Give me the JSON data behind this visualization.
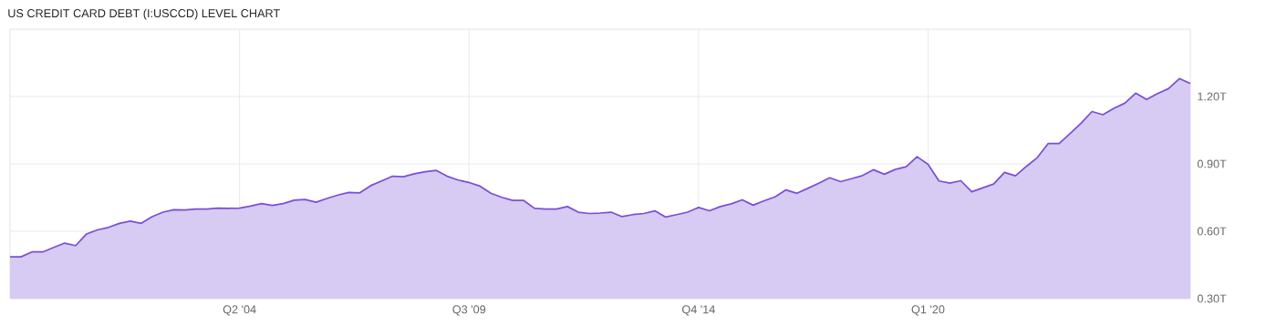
{
  "chart_data": {
    "type": "area",
    "title": "US CREDIT CARD DEBT (I:USCCD) LEVEL CHART",
    "x": [
      "1999-01",
      "1999-04",
      "1999-07",
      "1999-10",
      "2000-01",
      "2000-04",
      "2000-07",
      "2000-10",
      "2001-01",
      "2001-04",
      "2001-07",
      "2001-10",
      "2002-01",
      "2002-04",
      "2002-07",
      "2002-10",
      "2003-01",
      "2003-04",
      "2003-07",
      "2003-10",
      "2004-01",
      "2004-04",
      "2004-07",
      "2004-10",
      "2005-01",
      "2005-04",
      "2005-07",
      "2005-10",
      "2006-01",
      "2006-04",
      "2006-07",
      "2006-10",
      "2007-01",
      "2007-04",
      "2007-07",
      "2007-10",
      "2008-01",
      "2008-04",
      "2008-07",
      "2008-10",
      "2009-01",
      "2009-04",
      "2009-07",
      "2009-10",
      "2010-01",
      "2010-04",
      "2010-07",
      "2010-10",
      "2011-01",
      "2011-04",
      "2011-07",
      "2011-10",
      "2012-01",
      "2012-04",
      "2012-07",
      "2012-10",
      "2013-01",
      "2013-04",
      "2013-07",
      "2013-10",
      "2014-01",
      "2014-04",
      "2014-07",
      "2014-10",
      "2015-01",
      "2015-04",
      "2015-07",
      "2015-10",
      "2016-01",
      "2016-04",
      "2016-07",
      "2016-10",
      "2017-01",
      "2017-04",
      "2017-07",
      "2017-10",
      "2018-01",
      "2018-04",
      "2018-07",
      "2018-10",
      "2019-01",
      "2019-04",
      "2019-07",
      "2019-10",
      "2020-01",
      "2020-04",
      "2020-07",
      "2020-10",
      "2021-01",
      "2021-04",
      "2021-07",
      "2021-10",
      "2022-01",
      "2022-04",
      "2022-07",
      "2022-10",
      "2023-01",
      "2023-04",
      "2023-07",
      "2023-10",
      "2024-01",
      "2024-04",
      "2024-07",
      "2024-10",
      "2025-01",
      "2025-04",
      "2025-07",
      "2025-10",
      "2026-01"
    ],
    "values": [
      0.486,
      0.486,
      0.508,
      0.508,
      0.528,
      0.547,
      0.536,
      0.588,
      0.606,
      0.617,
      0.635,
      0.645,
      0.635,
      0.665,
      0.685,
      0.696,
      0.695,
      0.699,
      0.699,
      0.703,
      0.702,
      0.703,
      0.712,
      0.723,
      0.715,
      0.723,
      0.738,
      0.741,
      0.729,
      0.746,
      0.761,
      0.773,
      0.771,
      0.803,
      0.824,
      0.845,
      0.843,
      0.856,
      0.865,
      0.871,
      0.845,
      0.828,
      0.817,
      0.801,
      0.769,
      0.751,
      0.737,
      0.737,
      0.702,
      0.699,
      0.699,
      0.71,
      0.685,
      0.679,
      0.681,
      0.685,
      0.665,
      0.674,
      0.679,
      0.691,
      0.663,
      0.674,
      0.685,
      0.706,
      0.691,
      0.71,
      0.722,
      0.74,
      0.716,
      0.736,
      0.753,
      0.784,
      0.769,
      0.791,
      0.814,
      0.838,
      0.821,
      0.834,
      0.848,
      0.874,
      0.854,
      0.875,
      0.887,
      0.932,
      0.898,
      0.824,
      0.814,
      0.825,
      0.776,
      0.793,
      0.81,
      0.862,
      0.847,
      0.889,
      0.928,
      0.991,
      0.991,
      1.035,
      1.081,
      1.133,
      1.119,
      1.147,
      1.17,
      1.215,
      1.187,
      1.213,
      1.235,
      1.28,
      1.258
    ],
    "color": "#7b4fd6",
    "xlim": [
      "1999-01",
      "2026-01"
    ],
    "xticks": [
      {
        "value": "2004-04",
        "label": "Q2 '04"
      },
      {
        "value": "2009-07",
        "label": "Q3 '09"
      },
      {
        "value": "2014-10",
        "label": "Q4 '14"
      },
      {
        "value": "2020-01",
        "label": "Q1 '20"
      }
    ],
    "ylim": [
      0.3,
      1.5
    ],
    "yticks": [
      {
        "value": 0.3,
        "label": "0.30T"
      },
      {
        "value": 0.6,
        "label": "0.60T"
      },
      {
        "value": 0.9,
        "label": "0.90T"
      },
      {
        "value": 1.2,
        "label": "1.20T"
      }
    ],
    "grid": true
  }
}
